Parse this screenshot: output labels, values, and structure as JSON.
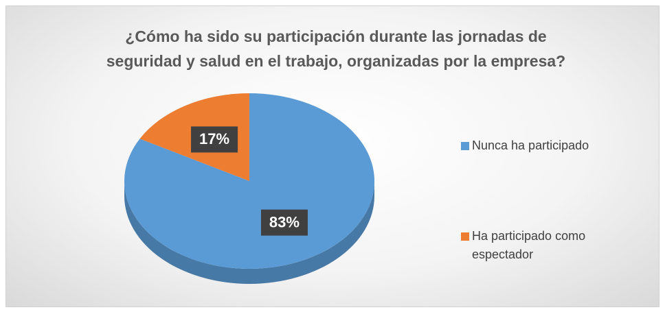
{
  "chart_data": {
    "type": "pie",
    "title": "¿Cómo ha sido su participación durante las jornadas de seguridad y salud en el trabajo, organizadas por la empresa?",
    "categories": [
      "Nunca ha participado",
      "Ha participado como espectador"
    ],
    "values": [
      83,
      17
    ],
    "value_labels": [
      "83%",
      "17%"
    ],
    "colors": [
      "#5b9bd5",
      "#ed7d31"
    ],
    "legend": "right"
  }
}
